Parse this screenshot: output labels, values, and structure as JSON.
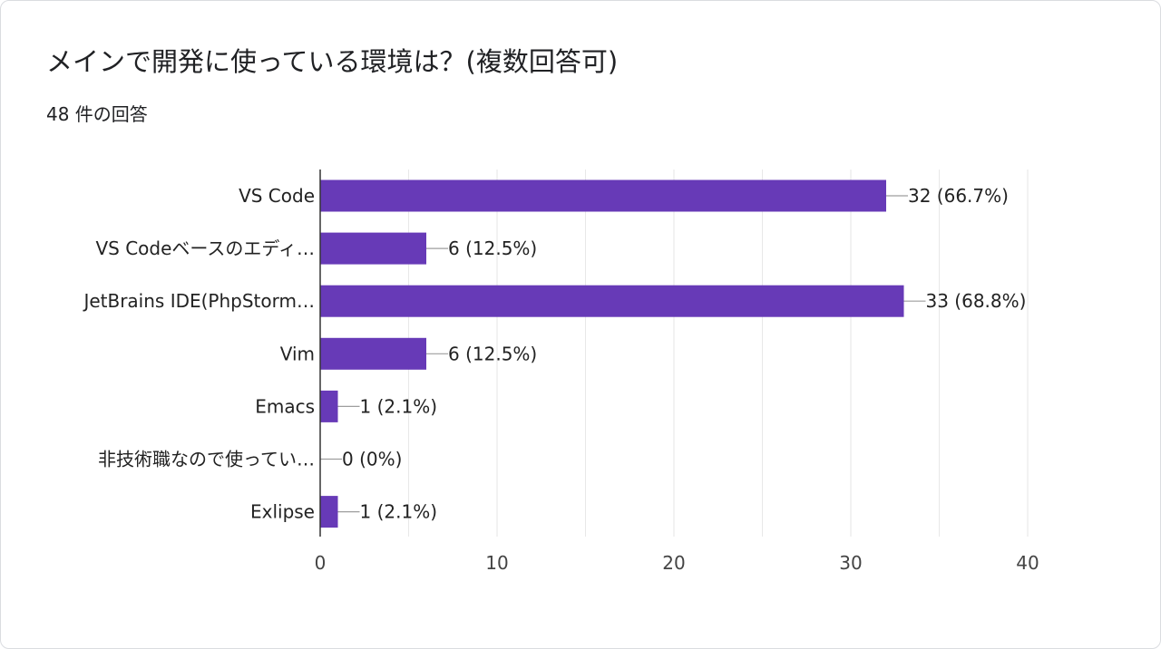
{
  "title": "メインで開発に使っている環境は？(複数回答可)",
  "response_count": "48 件の回答",
  "colors": {
    "bar": "#673ab7",
    "gridline": "#e8e8e8",
    "axis": "#333333",
    "connector": "#9e9e9e"
  },
  "chart_data": {
    "type": "bar",
    "orientation": "horizontal",
    "title": "メインで開発に使っている環境は？(複数回答可)",
    "subtitle": "48 件の回答",
    "categories": [
      "VS Code",
      "VS Codeベースのエディ…",
      "JetBrains IDE(PhpStorm…",
      "Vim",
      "Emacs",
      "非技術職なので使ってい…",
      "Exlipse"
    ],
    "values": [
      32,
      6,
      33,
      6,
      1,
      0,
      1
    ],
    "data_labels": [
      "32 (66.7%)",
      "6 (12.5%)",
      "33 (68.8%)",
      "6 (12.5%)",
      "1 (2.1%)",
      "0 (0%)",
      "1 (2.1%)"
    ],
    "xlim": [
      0,
      40
    ],
    "xticks": [
      0,
      10,
      20,
      30,
      40
    ],
    "xtick_labels": [
      "0",
      "10",
      "20",
      "30",
      "40"
    ],
    "grid": true,
    "legend": "none"
  }
}
